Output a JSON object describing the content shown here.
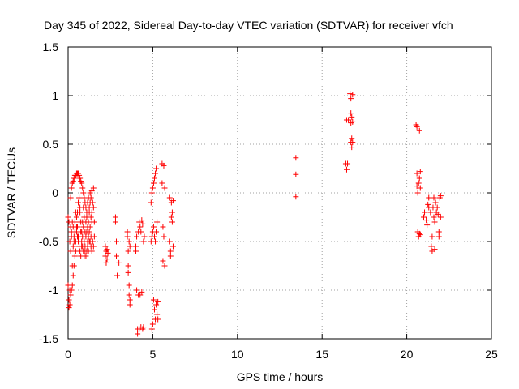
{
  "chart_data": {
    "type": "scatter",
    "title": "Day 345 of 2022, Sidereal Day-to-day VTEC variation (SDTVAR) for receiver vfch",
    "xlabel": "GPS time / hours",
    "ylabel": "SDTVAR / TECUs",
    "xlim": [
      0,
      25
    ],
    "ylim": [
      -1.5,
      1.5
    ],
    "xticks": [
      0,
      5,
      10,
      15,
      20,
      25
    ],
    "yticks": [
      -1.5,
      -1,
      -0.5,
      0,
      0.5,
      1,
      1.5
    ],
    "xtick_labels": [
      "0",
      "5",
      "10",
      "15",
      "20",
      "25"
    ],
    "ytick_labels": [
      "-1.5",
      "-1",
      "-0.5",
      "0",
      "0.5",
      "1",
      "1.5"
    ],
    "grid": true,
    "marker": "plus",
    "color": "#ff0000",
    "series": [
      {
        "name": "SDTVAR",
        "points": [
          [
            0.0,
            -0.25
          ],
          [
            0.0,
            -0.95
          ],
          [
            0.05,
            -1.18
          ],
          [
            0.05,
            -1.1
          ],
          [
            0.05,
            -0.3
          ],
          [
            0.1,
            -0.5
          ],
          [
            0.1,
            -1.0
          ],
          [
            0.1,
            -1.15
          ],
          [
            0.15,
            -0.35
          ],
          [
            0.15,
            -0.05
          ],
          [
            0.15,
            -0.6
          ],
          [
            0.15,
            -1.05
          ],
          [
            0.2,
            -0.4
          ],
          [
            0.2,
            0.05
          ],
          [
            0.2,
            -0.45
          ],
          [
            0.2,
            -1.0
          ],
          [
            0.25,
            -0.3
          ],
          [
            0.25,
            0.1
          ],
          [
            0.25,
            -0.75
          ],
          [
            0.25,
            -0.95
          ],
          [
            0.3,
            -0.55
          ],
          [
            0.3,
            0.12
          ],
          [
            0.3,
            -0.35
          ],
          [
            0.3,
            -0.85
          ],
          [
            0.35,
            -0.45
          ],
          [
            0.35,
            0.15
          ],
          [
            0.35,
            -0.5
          ],
          [
            0.35,
            -0.75
          ],
          [
            0.4,
            -0.3
          ],
          [
            0.4,
            0.18
          ],
          [
            0.4,
            -0.4
          ],
          [
            0.4,
            -0.65
          ],
          [
            0.45,
            -0.2
          ],
          [
            0.45,
            0.18
          ],
          [
            0.45,
            -0.6
          ],
          [
            0.45,
            -0.5
          ],
          [
            0.5,
            -0.25
          ],
          [
            0.5,
            0.2
          ],
          [
            0.5,
            -0.4
          ],
          [
            0.5,
            -0.35
          ],
          [
            0.55,
            -0.35
          ],
          [
            0.55,
            0.2
          ],
          [
            0.55,
            -0.45
          ],
          [
            0.55,
            -0.2
          ],
          [
            0.6,
            -0.45
          ],
          [
            0.6,
            0.2
          ],
          [
            0.6,
            -0.5
          ],
          [
            0.6,
            -0.1
          ],
          [
            0.65,
            -0.3
          ],
          [
            0.65,
            0.18
          ],
          [
            0.65,
            -0.55
          ],
          [
            0.65,
            -0.05
          ],
          [
            0.7,
            -0.2
          ],
          [
            0.7,
            0.15
          ],
          [
            0.7,
            -0.6
          ],
          [
            0.7,
            -0.15
          ],
          [
            0.75,
            -0.4
          ],
          [
            0.75,
            0.12
          ],
          [
            0.75,
            -0.65
          ],
          [
            0.75,
            -0.3
          ],
          [
            0.8,
            -0.5
          ],
          [
            0.8,
            0.1
          ],
          [
            0.8,
            -0.55
          ],
          [
            0.8,
            -0.4
          ],
          [
            0.85,
            -0.3
          ],
          [
            0.85,
            0.05
          ],
          [
            0.85,
            -0.45
          ],
          [
            0.85,
            -0.55
          ],
          [
            0.9,
            -0.15
          ],
          [
            0.9,
            0.0
          ],
          [
            0.9,
            -0.35
          ],
          [
            0.9,
            -0.6
          ],
          [
            0.95,
            -0.25
          ],
          [
            0.95,
            -0.05
          ],
          [
            0.95,
            -0.5
          ],
          [
            0.95,
            -0.65
          ],
          [
            1.0,
            -0.4
          ],
          [
            1.0,
            -0.1
          ],
          [
            1.0,
            -0.6
          ],
          [
            1.0,
            -0.55
          ],
          [
            1.05,
            -0.3
          ],
          [
            1.05,
            -0.15
          ],
          [
            1.05,
            -0.45
          ],
          [
            1.05,
            -0.65
          ],
          [
            1.1,
            -0.2
          ],
          [
            1.1,
            -0.25
          ],
          [
            1.1,
            -0.4
          ],
          [
            1.1,
            -0.6
          ],
          [
            1.15,
            -0.1
          ],
          [
            1.15,
            -0.35
          ],
          [
            1.15,
            -0.5
          ],
          [
            1.15,
            -0.55
          ],
          [
            1.2,
            -0.05
          ],
          [
            1.2,
            -0.3
          ],
          [
            1.2,
            -0.45
          ],
          [
            1.2,
            -0.6
          ],
          [
            1.25,
            -0.15
          ],
          [
            1.25,
            -0.4
          ],
          [
            1.25,
            -0.2
          ],
          [
            1.25,
            -0.5
          ],
          [
            1.3,
            0.0
          ],
          [
            1.3,
            -0.35
          ],
          [
            1.3,
            -0.1
          ],
          [
            1.3,
            -0.5
          ],
          [
            1.35,
            -0.05
          ],
          [
            1.35,
            -0.45
          ],
          [
            1.35,
            -0.25
          ],
          [
            1.35,
            -0.55
          ],
          [
            1.4,
            0.02
          ],
          [
            1.4,
            -0.2
          ],
          [
            1.4,
            -0.3
          ],
          [
            1.4,
            -0.6
          ],
          [
            1.45,
            -0.1
          ],
          [
            1.45,
            -0.5
          ],
          [
            1.5,
            -0.15
          ],
          [
            1.5,
            -0.55
          ],
          [
            1.5,
            0.05
          ],
          [
            1.55,
            -0.45
          ],
          [
            1.55,
            -0.3
          ],
          [
            2.2,
            -0.55
          ],
          [
            2.2,
            -0.65
          ],
          [
            2.25,
            -0.6
          ],
          [
            2.25,
            -0.72
          ],
          [
            2.3,
            -0.58
          ],
          [
            2.3,
            -0.68
          ],
          [
            2.35,
            -0.62
          ],
          [
            2.8,
            -0.25
          ],
          [
            2.8,
            -0.3
          ],
          [
            2.85,
            -0.5
          ],
          [
            2.85,
            -0.65
          ],
          [
            2.9,
            -0.85
          ],
          [
            3.0,
            -0.72
          ],
          [
            3.5,
            -0.4
          ],
          [
            3.5,
            -0.45
          ],
          [
            3.55,
            -0.6
          ],
          [
            3.55,
            -0.75
          ],
          [
            3.55,
            -0.82
          ],
          [
            3.6,
            -0.95
          ],
          [
            3.6,
            -1.05
          ],
          [
            3.65,
            -1.1
          ],
          [
            3.65,
            -1.15
          ],
          [
            3.6,
            -0.5
          ],
          [
            3.65,
            -0.55
          ],
          [
            4.0,
            -0.55
          ],
          [
            4.0,
            -0.6
          ],
          [
            4.05,
            -0.45
          ],
          [
            4.05,
            -1.0
          ],
          [
            4.1,
            -1.4
          ],
          [
            4.1,
            -1.45
          ],
          [
            4.15,
            -0.4
          ],
          [
            4.15,
            -1.05
          ],
          [
            4.2,
            -0.3
          ],
          [
            4.2,
            -1.4
          ],
          [
            4.25,
            -0.35
          ],
          [
            4.25,
            -1.05
          ],
          [
            4.3,
            -0.4
          ],
          [
            4.3,
            -1.38
          ],
          [
            4.35,
            -0.28
          ],
          [
            4.35,
            -1.02
          ],
          [
            4.4,
            -0.32
          ],
          [
            4.4,
            -1.4
          ],
          [
            4.45,
            -0.5
          ],
          [
            4.45,
            -1.38
          ],
          [
            4.5,
            -0.45
          ],
          [
            4.9,
            -0.5
          ],
          [
            4.9,
            -0.1
          ],
          [
            4.95,
            -0.45
          ],
          [
            4.95,
            0.0
          ],
          [
            4.95,
            -1.4
          ],
          [
            5.0,
            -0.4
          ],
          [
            5.0,
            0.05
          ],
          [
            5.0,
            -1.35
          ],
          [
            5.05,
            -0.35
          ],
          [
            5.05,
            0.1
          ],
          [
            5.05,
            -1.1
          ],
          [
            5.1,
            -0.45
          ],
          [
            5.1,
            0.15
          ],
          [
            5.1,
            -1.2
          ],
          [
            5.15,
            -0.5
          ],
          [
            5.15,
            0.2
          ],
          [
            5.15,
            -1.3
          ],
          [
            5.2,
            -0.4
          ],
          [
            5.2,
            0.25
          ],
          [
            5.2,
            -1.15
          ],
          [
            5.25,
            -0.3
          ],
          [
            5.25,
            -1.25
          ],
          [
            5.3,
            -1.12
          ],
          [
            5.3,
            -1.3
          ],
          [
            5.55,
            0.1
          ],
          [
            5.55,
            0.3
          ],
          [
            5.6,
            -0.35
          ],
          [
            5.6,
            -0.7
          ],
          [
            5.65,
            -0.45
          ],
          [
            5.65,
            0.28
          ],
          [
            5.7,
            -0.75
          ],
          [
            5.7,
            0.05
          ],
          [
            6.0,
            -0.05
          ],
          [
            6.0,
            -0.5
          ],
          [
            6.05,
            -0.6
          ],
          [
            6.05,
            -0.65
          ],
          [
            6.1,
            -0.1
          ],
          [
            6.1,
            -0.25
          ],
          [
            6.15,
            -0.2
          ],
          [
            6.15,
            -0.3
          ],
          [
            6.2,
            -0.08
          ],
          [
            6.2,
            -0.55
          ],
          [
            13.45,
            0.36
          ],
          [
            13.45,
            0.19
          ],
          [
            13.45,
            -0.04
          ],
          [
            16.4,
            0.3
          ],
          [
            16.45,
            0.24
          ],
          [
            16.45,
            0.75
          ],
          [
            16.5,
            0.3
          ],
          [
            16.55,
            0.75
          ],
          [
            16.65,
            1.02
          ],
          [
            16.7,
            0.97
          ],
          [
            16.7,
            0.82
          ],
          [
            16.7,
            0.72
          ],
          [
            16.7,
            0.52
          ],
          [
            16.75,
            0.47
          ],
          [
            16.75,
            0.56
          ],
          [
            16.75,
            0.78
          ],
          [
            16.8,
            1.01
          ],
          [
            16.8,
            0.73
          ],
          [
            16.8,
            0.52
          ],
          [
            20.55,
            0.7
          ],
          [
            20.6,
            0.68
          ],
          [
            20.6,
            0.2
          ],
          [
            20.6,
            0.07
          ],
          [
            20.65,
            0.0
          ],
          [
            20.65,
            -0.4
          ],
          [
            20.7,
            -0.45
          ],
          [
            20.7,
            0.1
          ],
          [
            20.75,
            0.15
          ],
          [
            20.75,
            0.64
          ],
          [
            20.75,
            -0.42
          ],
          [
            20.8,
            0.05
          ],
          [
            20.8,
            0.22
          ],
          [
            20.8,
            -0.43
          ],
          [
            21.0,
            -0.25
          ],
          [
            21.05,
            -0.2
          ],
          [
            21.15,
            -0.28
          ],
          [
            21.2,
            -0.33
          ],
          [
            21.25,
            -0.12
          ],
          [
            21.3,
            -0.05
          ],
          [
            21.3,
            -0.15
          ],
          [
            21.4,
            -0.2
          ],
          [
            21.45,
            -0.55
          ],
          [
            21.5,
            -0.6
          ],
          [
            21.5,
            -0.45
          ],
          [
            21.55,
            -0.15
          ],
          [
            21.6,
            -0.05
          ],
          [
            21.6,
            -0.25
          ],
          [
            21.65,
            -0.58
          ],
          [
            21.65,
            -0.3
          ],
          [
            21.7,
            -0.1
          ],
          [
            21.75,
            -0.2
          ],
          [
            21.8,
            -0.15
          ],
          [
            21.85,
            -0.22
          ],
          [
            21.9,
            -0.45
          ],
          [
            21.9,
            -0.4
          ],
          [
            21.95,
            -0.05
          ],
          [
            22.0,
            -0.03
          ],
          [
            22.0,
            -0.25
          ]
        ]
      }
    ]
  }
}
